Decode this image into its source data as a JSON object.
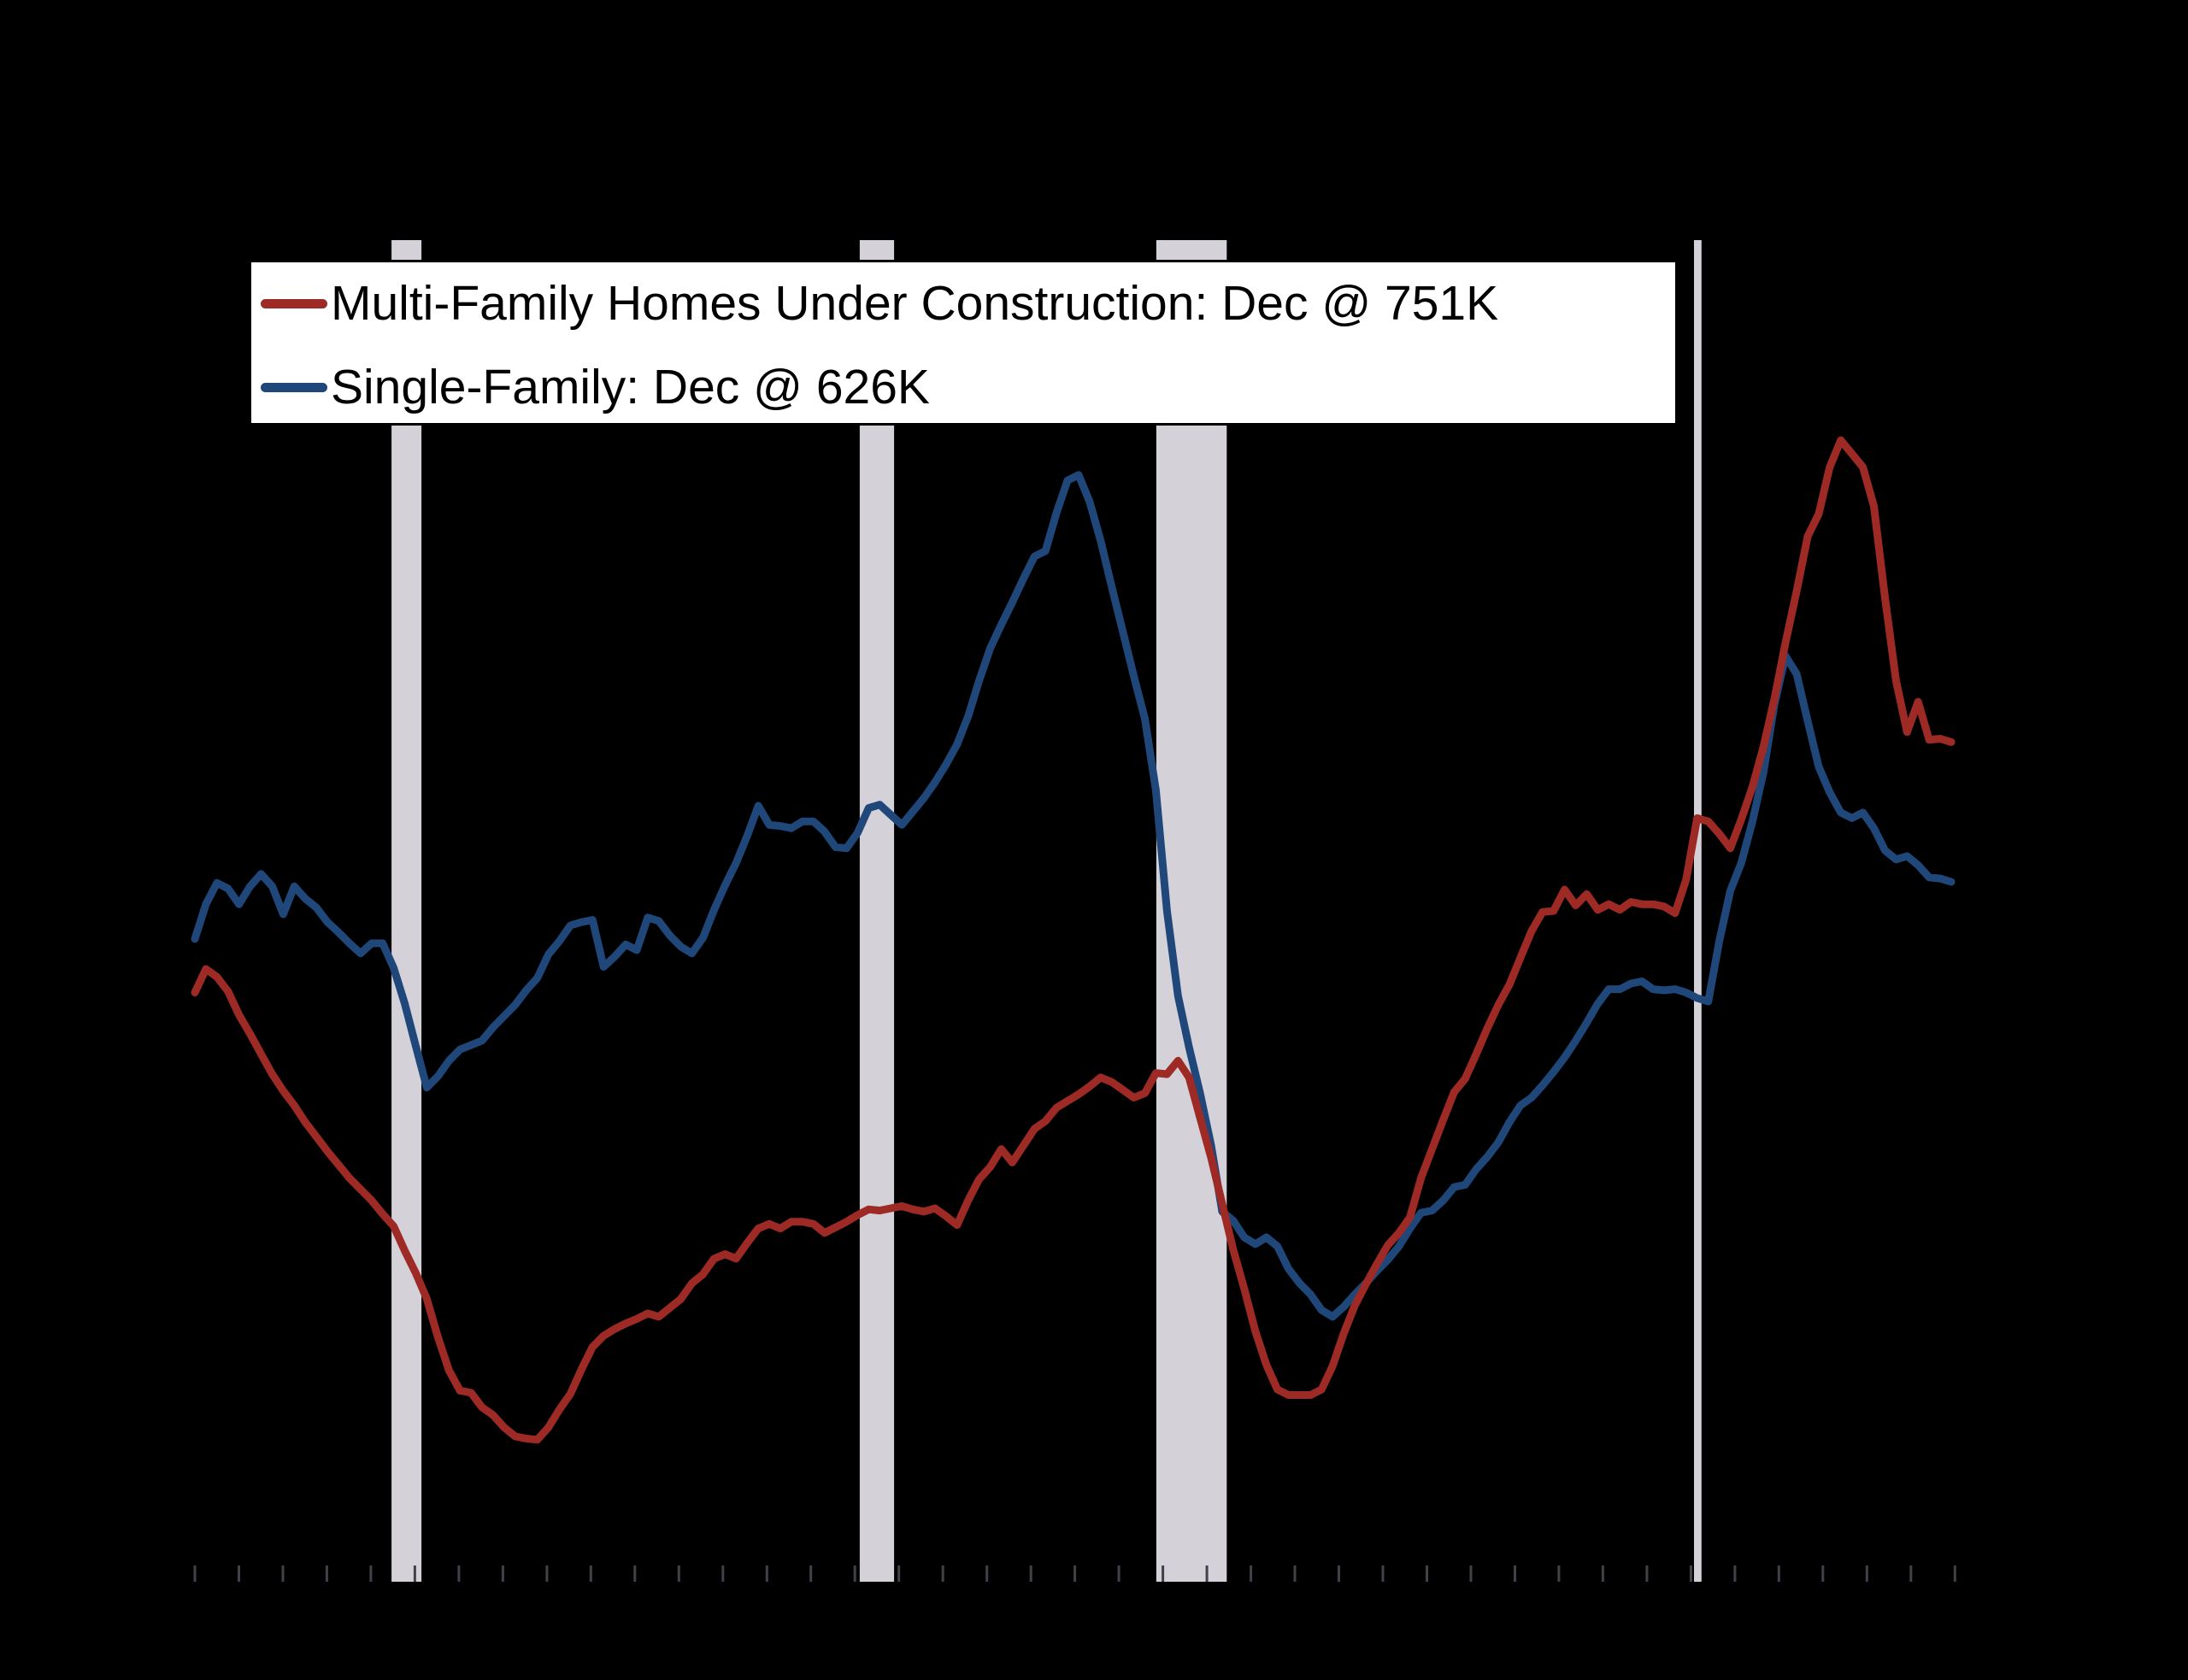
{
  "legend": {
    "entries": [
      {
        "label": "Multi-Family Homes Under Construction: Dec @ 751K",
        "color": "#9e2a26",
        "swatch": "red-line-swatch"
      },
      {
        "label": "Single-Family: Dec @ 626K",
        "color": "#1f4779",
        "swatch": "blue-line-swatch"
      }
    ]
  },
  "colors": {
    "background": "#000000",
    "recession_band": "#d4d1d9",
    "tick_mark": "#44404a",
    "legend_background": "#ffffff",
    "legend_border": "#000000"
  },
  "chart_data": {
    "type": "line",
    "title": "",
    "xlabel": "",
    "ylabel": "",
    "x_start_year": 1986.0,
    "x_end_year": 2025.917,
    "points_per_series": 160,
    "ylim": [
      0,
      1200
    ],
    "grid": false,
    "legend_position": "upper left",
    "axis_labels_visible": false,
    "recession_bands_years": [
      [
        1990.47,
        1991.15
      ],
      [
        2001.11,
        2001.89
      ],
      [
        2007.85,
        2009.45
      ],
      [
        2020.07,
        2020.24
      ]
    ],
    "tick_years": [
      1986,
      1987,
      1988,
      1989,
      1990,
      1991,
      1992,
      1993,
      1994,
      1995,
      1996,
      1997,
      1998,
      1999,
      2000,
      2001,
      2002,
      2003,
      2004,
      2005,
      2006,
      2007,
      2008,
      2009,
      2010,
      2011,
      2012,
      2013,
      2014,
      2015,
      2016,
      2017,
      2018,
      2019,
      2020,
      2021,
      2022,
      2023,
      2024,
      2025,
      2026
    ],
    "series": [
      {
        "name": "Single-Family: Dec @ 626K",
        "color": "#1f4779",
        "values": [
          575,
          606,
          625,
          620,
          606,
          622,
          633,
          622,
          597,
          622,
          611,
          603,
          590,
          581,
          571,
          562,
          571,
          571,
          549,
          517,
          479,
          442,
          452,
          466,
          476,
          480,
          484,
          496,
          506,
          516,
          529,
          540,
          561,
          573,
          587,
          590,
          592,
          550,
          559,
          570,
          565,
          594,
          591,
          578,
          568,
          562,
          576,
          601,
          623,
          643,
          667,
          694,
          677,
          676,
          674,
          680,
          680,
          671,
          657,
          656,
          670,
          692,
          695,
          686,
          677,
          689,
          701,
          715,
          731,
          749,
          774,
          806,
          835,
          856,
          876,
          897,
          917,
          922,
          956,
          985,
          990,
          966,
          931,
          890,
          850,
          810,
          772,
          708,
          600,
          524,
          478,
          437,
          390,
          331,
          323,
          308,
          302,
          308,
          300,
          280,
          267,
          257,
          243,
          237,
          246,
          257,
          267,
          278,
          288,
          300,
          316,
          330,
          332,
          341,
          353,
          355,
          369,
          380,
          393,
          411,
          426,
          433,
          444,
          456,
          469,
          484,
          500,
          517,
          530,
          530,
          535,
          537,
          530,
          529,
          530,
          527,
          522,
          519,
          573,
          618,
          643,
          680,
          724,
          785,
          828,
          812,
          770,
          729,
          706,
          688,
          683,
          688,
          674,
          654,
          646,
          649,
          641,
          630,
          629,
          626
        ]
      },
      {
        "name": "Multi-Family Homes Under Construction: Dec @ 751K",
        "color": "#9e2a26",
        "values": [
          527,
          548,
          541,
          528,
          507,
          490,
          472,
          454,
          439,
          426,
          411,
          398,
          385,
          373,
          361,
          351,
          341,
          329,
          318,
          296,
          276,
          253,
          219,
          189,
          171,
          169,
          156,
          149,
          138,
          130,
          128,
          127,
          138,
          154,
          168,
          190,
          210,
          220,
          226,
          231,
          235,
          240,
          237,
          245,
          253,
          267,
          275,
          289,
          293,
          289,
          303,
          316,
          320,
          316,
          322,
          322,
          320,
          312,
          317,
          322,
          328,
          333,
          332,
          334,
          336,
          333,
          331,
          334,
          327,
          319,
          341,
          360,
          371,
          387,
          375,
          390,
          405,
          412,
          424,
          430,
          436,
          443,
          451,
          447,
          440,
          433,
          437,
          455,
          454,
          466,
          451,
          415,
          379,
          338,
          297,
          262,
          224,
          194,
          172,
          167,
          167,
          167,
          172,
          193,
          222,
          247,
          266,
          284,
          301,
          312,
          326,
          361,
          387,
          413,
          438,
          450,
          472,
          495,
          516,
          534,
          558,
          582,
          599,
          600,
          619,
          605,
          615,
          601,
          606,
          601,
          608,
          606,
          606,
          604,
          598,
          628,
          683,
          680,
          669,
          656,
          682,
          711,
          747,
          790,
          840,
          886,
          935,
          955,
          997,
          1021,
          1009,
          997,
          962,
          880,
          806,
          760,
          787,
          753,
          754,
          751
        ]
      }
    ]
  }
}
